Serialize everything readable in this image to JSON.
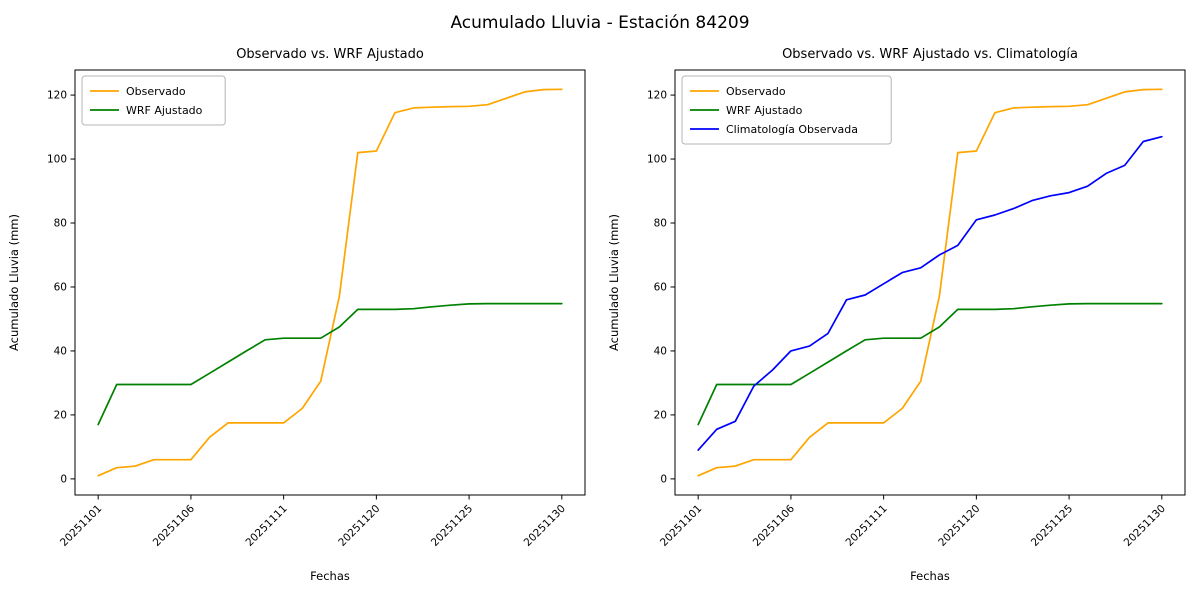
{
  "figure": {
    "title": "Acumulado Lluvia - Estación 84209",
    "background": "#ffffff"
  },
  "style": {
    "axis_color": "#000000",
    "legend_border_color": "#b5b5b5",
    "observado_color": "#ffa500",
    "wrf_color": "#008000",
    "climatologia_color": "#0000ff"
  },
  "chart_data": [
    {
      "type": "line",
      "title": "Observado vs. WRF Ajustado",
      "xlabel": "Fechas",
      "ylabel": "Acumulado Lluvia (mm)",
      "grid": false,
      "legend_position": "upper left",
      "ylim": [
        0,
        120
      ],
      "yticks": [
        0,
        20,
        40,
        60,
        80,
        100,
        120
      ],
      "x": [
        "20251101",
        "20251102",
        "20251103",
        "20251104",
        "20251105",
        "20251106",
        "20251107",
        "20251108",
        "20251109",
        "20251110",
        "20251111",
        "20251112",
        "20251113",
        "20251114",
        "20251115",
        "20251120",
        "20251121",
        "20251122",
        "20251123",
        "20251124",
        "20251125",
        "20251126",
        "20251127",
        "20251128",
        "20251129",
        "20251130"
      ],
      "xtick_indices": [
        0,
        5,
        10,
        15,
        20,
        25
      ],
      "xtick_labels": [
        "20251101",
        "20251106",
        "20251111",
        "20251120",
        "20251125",
        "20251130"
      ],
      "series": [
        {
          "name": "Observado",
          "color": "#ffa500",
          "values": [
            1,
            3.5,
            4,
            6,
            6,
            6,
            13,
            17.5,
            17.5,
            17.5,
            17.5,
            22,
            30.5,
            57,
            102,
            102.5,
            114.5,
            116,
            116.2,
            116.4,
            116.5,
            117,
            119,
            121,
            121.7,
            121.8
          ]
        },
        {
          "name": "WRF Ajustado",
          "color": "#008000",
          "values": [
            17,
            29.5,
            29.5,
            29.5,
            29.5,
            29.5,
            33,
            36.5,
            40,
            43.5,
            44,
            44,
            44,
            47.5,
            53,
            53,
            53,
            53.2,
            53.8,
            54.3,
            54.7,
            54.8,
            54.8,
            54.8,
            54.8,
            54.8
          ]
        }
      ]
    },
    {
      "type": "line",
      "title": "Observado vs. WRF Ajustado vs. Climatología",
      "xlabel": "Fechas",
      "ylabel": "Acumulado Lluvia (mm)",
      "grid": false,
      "legend_position": "upper left",
      "ylim": [
        0,
        120
      ],
      "yticks": [
        0,
        20,
        40,
        60,
        80,
        100,
        120
      ],
      "x": [
        "20251101",
        "20251102",
        "20251103",
        "20251104",
        "20251105",
        "20251106",
        "20251107",
        "20251108",
        "20251109",
        "20251110",
        "20251111",
        "20251112",
        "20251113",
        "20251114",
        "20251115",
        "20251120",
        "20251121",
        "20251122",
        "20251123",
        "20251124",
        "20251125",
        "20251126",
        "20251127",
        "20251128",
        "20251129",
        "20251130"
      ],
      "xtick_indices": [
        0,
        5,
        10,
        15,
        20,
        25
      ],
      "xtick_labels": [
        "20251101",
        "20251106",
        "20251111",
        "20251120",
        "20251125",
        "20251130"
      ],
      "series": [
        {
          "name": "Observado",
          "color": "#ffa500",
          "values": [
            1,
            3.5,
            4,
            6,
            6,
            6,
            13,
            17.5,
            17.5,
            17.5,
            17.5,
            22,
            30.5,
            57,
            102,
            102.5,
            114.5,
            116,
            116.2,
            116.4,
            116.5,
            117,
            119,
            121,
            121.7,
            121.8
          ]
        },
        {
          "name": "WRF Ajustado",
          "color": "#008000",
          "values": [
            17,
            29.5,
            29.5,
            29.5,
            29.5,
            29.5,
            33,
            36.5,
            40,
            43.5,
            44,
            44,
            44,
            47.5,
            53,
            53,
            53,
            53.2,
            53.8,
            54.3,
            54.7,
            54.8,
            54.8,
            54.8,
            54.8,
            54.8
          ]
        },
        {
          "name": "Climatología Observada",
          "color": "#0000ff",
          "values": [
            9,
            15.5,
            18,
            29,
            34,
            40,
            41.5,
            45.5,
            56,
            57.5,
            61,
            64.5,
            66,
            70,
            73,
            81,
            82.5,
            84.5,
            87,
            88.5,
            89.5,
            91.5,
            95.5,
            98,
            105.5,
            107
          ]
        }
      ]
    }
  ]
}
